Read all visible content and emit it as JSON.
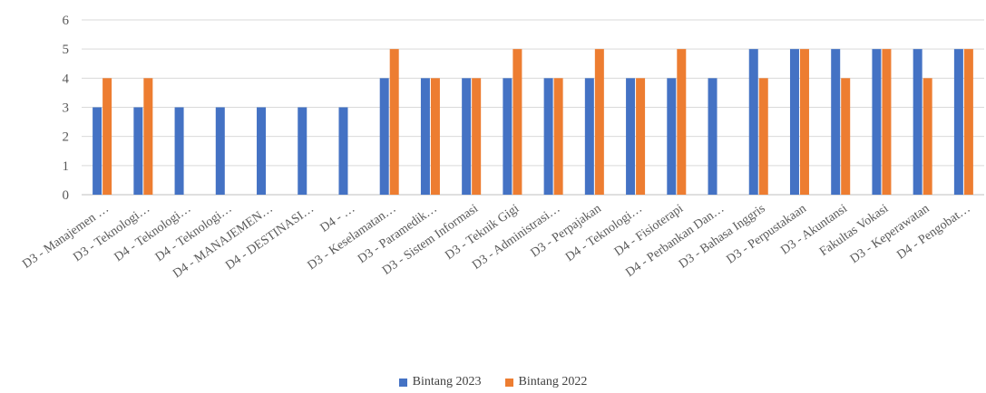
{
  "chart_data": {
    "type": "bar",
    "title": "",
    "xlabel": "",
    "ylabel": "",
    "ylim": [
      0,
      6
    ],
    "yticks": [
      0,
      1,
      2,
      3,
      4,
      5,
      6
    ],
    "grid": true,
    "legend_position": "bottom",
    "categories": [
      "D3 - Manajemen …",
      "D3 - Teknologi…",
      "D4 - Teknologi…",
      "D4 - Teknologi…",
      "D4 - MANAJEMEN…",
      "D4 - DESTINASI…",
      "D4 - …",
      "D3 - Keselamatan…",
      "D3 - Paramedik…",
      "D3 - Sistem Informasi",
      "D3 - Teknik Gigi",
      "D3 - Administrasi…",
      "D3 - Perpajakan",
      "D4 - Teknologi…",
      "D4 - Fisioterapi",
      "D4 - Perbankan Dan…",
      "D3 - Bahasa Inggris",
      "D3 - Perpustakaan",
      "D3 - Akuntansi",
      "Fakultas Vokasi",
      "D3 - Keperawatan",
      "D4 - Pengobat…"
    ],
    "series": [
      {
        "name": "Bintang 2023",
        "color": "#4472C4",
        "values": [
          3,
          3,
          3,
          3,
          3,
          3,
          3,
          4,
          4,
          4,
          4,
          4,
          4,
          4,
          4,
          4,
          5,
          5,
          5,
          5,
          5,
          5
        ]
      },
      {
        "name": "Bintang 2022",
        "color": "#ED7D31",
        "values": [
          4,
          4,
          null,
          null,
          null,
          null,
          null,
          5,
          4,
          4,
          5,
          4,
          5,
          4,
          5,
          null,
          4,
          5,
          4,
          5,
          4,
          5
        ]
      }
    ]
  }
}
